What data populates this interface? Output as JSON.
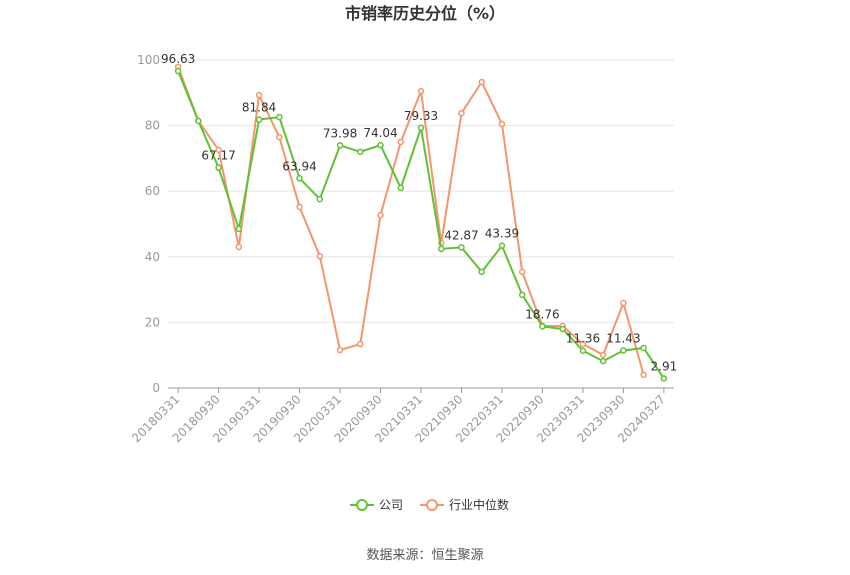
{
  "chart_data": {
    "type": "line",
    "title": "市销率历史分位（%）",
    "source": "数据来源：恒生聚源",
    "categories": [
      "20180331",
      null,
      "20180930",
      null,
      "20190331",
      null,
      "20190930",
      null,
      "20200331",
      null,
      "20200930",
      null,
      "20210331",
      null,
      "20210930",
      null,
      "20220331",
      null,
      "20220930",
      null,
      "20230331",
      null,
      "20230930",
      null,
      "20240327"
    ],
    "series": [
      {
        "name": "公司",
        "color": "#5ec234",
        "values": [
          96.63,
          81.4,
          67.17,
          48.5,
          81.84,
          82.6,
          63.94,
          57.6,
          73.98,
          72,
          74.04,
          61,
          79.33,
          42.4,
          42.87,
          35.4,
          43.39,
          28.4,
          18.76,
          18,
          11.36,
          8.2,
          11.43,
          12.2,
          2.91
        ]
      },
      {
        "name": "行业中位数",
        "color": "#f4956c",
        "values": [
          97.9,
          81.4,
          72.6,
          43,
          89.3,
          76.5,
          55.2,
          40.2,
          11.6,
          13.4,
          52.7,
          75,
          90.5,
          44.2,
          83.8,
          93.3,
          80.5,
          35.4,
          18.9,
          18.9,
          13.4,
          10.1,
          25.9,
          4,
          null
        ]
      }
    ],
    "ylim": [
      0,
      100
    ],
    "yticks": [
      0,
      20,
      40,
      60,
      80,
      100
    ],
    "grid": true,
    "legend": "bottom"
  }
}
